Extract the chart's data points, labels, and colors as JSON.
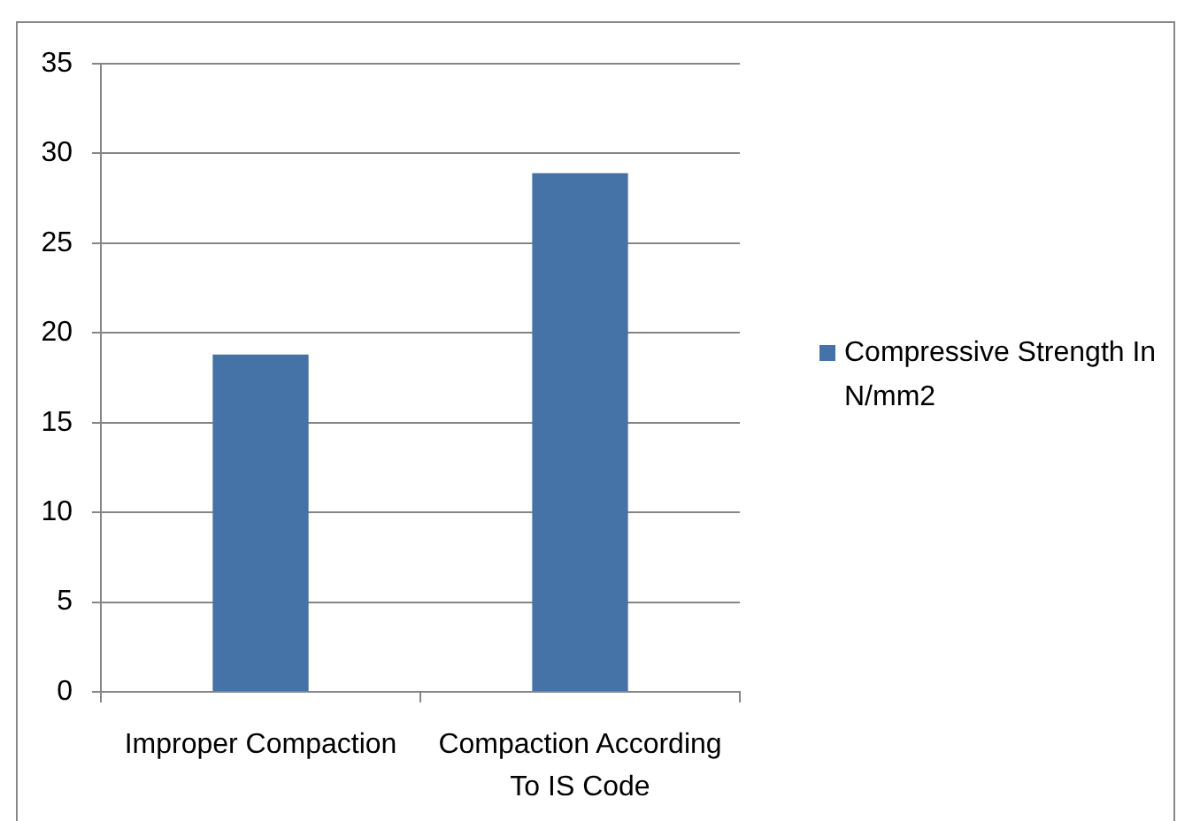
{
  "chart_data": {
    "type": "bar",
    "categories": [
      "Improper Compaction",
      "Compaction According To IS Code"
    ],
    "series": [
      {
        "name": "Compressive Strength In N/mm2",
        "color": "#4572a7",
        "values": [
          18.8,
          28.9
        ]
      }
    ],
    "ylim": [
      0,
      35
    ],
    "yticks": [
      0,
      5,
      10,
      15,
      20,
      25,
      30,
      35
    ],
    "grid": "y",
    "legend": "right"
  }
}
